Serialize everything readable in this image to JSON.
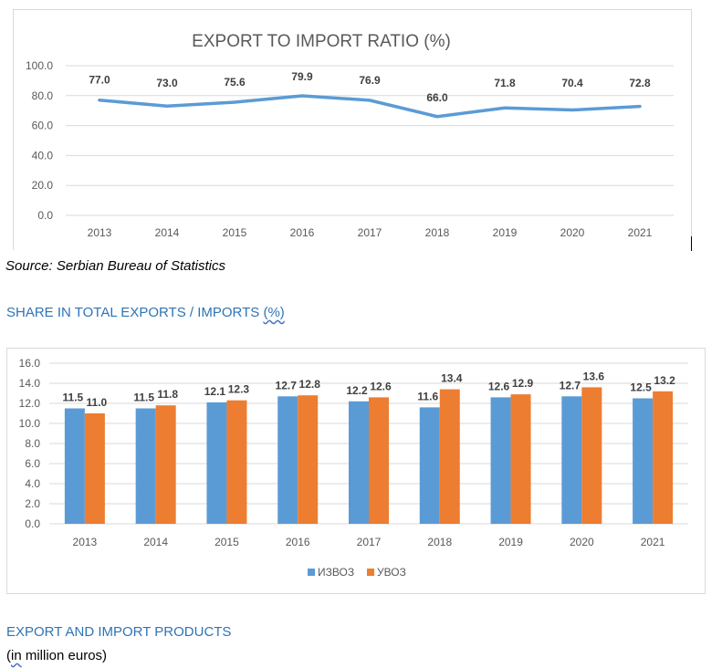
{
  "source": "Source: Serbian Bureau of Statistics",
  "headings": {
    "share_prefix": "SHARE IN TOTAL EXPORTS / IMPORTS ",
    "share_suffix": "(%)",
    "products": "EXPORT AND IMPORT PRODUCTS",
    "unit_prefix": "(",
    "unit_word": "in",
    "unit_suffix": " million euros)"
  },
  "colors": {
    "line": "#5b9bd5",
    "export": "#5b9bd5",
    "import": "#ed7d31",
    "grid": "#d9d9d9",
    "heading": "#2e74b5"
  },
  "chart_data": [
    {
      "type": "line",
      "title": "EXPORT TO IMPORT RATIO (%)",
      "categories": [
        "2013",
        "2014",
        "2015",
        "2016",
        "2017",
        "2018",
        "2019",
        "2020",
        "2021"
      ],
      "values": [
        77.0,
        73.0,
        75.6,
        79.9,
        76.9,
        66.0,
        71.8,
        70.4,
        72.8
      ],
      "value_labels": [
        "77.0",
        "73.0",
        "75.6",
        "79.9",
        "76.9",
        "66.0",
        "71.8",
        "70.4",
        "72.8"
      ],
      "ylim": [
        0,
        100
      ],
      "yticks": [
        "0.0",
        "20.0",
        "40.0",
        "60.0",
        "80.0",
        "100.0"
      ],
      "grid": true
    },
    {
      "type": "bar",
      "categories": [
        "2013",
        "2014",
        "2015",
        "2016",
        "2017",
        "2018",
        "2019",
        "2020",
        "2021"
      ],
      "series": [
        {
          "name": "ИЗВОЗ",
          "values": [
            11.5,
            11.5,
            12.1,
            12.7,
            12.2,
            11.6,
            12.6,
            12.7,
            12.5
          ],
          "labels": [
            "11.5",
            "11.5",
            "12.1",
            "12.7",
            "12.2",
            "11.6",
            "12.6",
            "12.7",
            "12.5"
          ]
        },
        {
          "name": "УВОЗ",
          "values": [
            11.0,
            11.8,
            12.3,
            12.8,
            12.6,
            13.4,
            12.9,
            13.6,
            13.2
          ],
          "labels": [
            "11.0",
            "11.8",
            "12.3",
            "12.8",
            "12.6",
            "13.4",
            "12.9",
            "13.6",
            "13.2"
          ]
        }
      ],
      "ylim": [
        0,
        16
      ],
      "yticks": [
        "0.0",
        "2.0",
        "4.0",
        "6.0",
        "8.0",
        "10.0",
        "12.0",
        "14.0",
        "16.0"
      ],
      "grid": true,
      "legend": "bottom"
    }
  ]
}
